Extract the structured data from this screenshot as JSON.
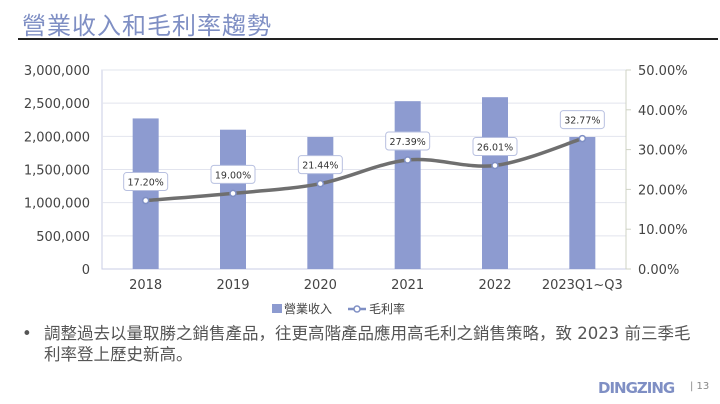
{
  "title": "營業收入和毛利率趨勢",
  "chart_data": {
    "type": "bar+line",
    "categories": [
      "2018",
      "2019",
      "2020",
      "2021",
      "2022",
      "2023Q1~Q3"
    ],
    "series": [
      {
        "name": "營業收入",
        "type": "bar",
        "axis": "left",
        "color": "#8d9bd0",
        "values": [
          2270000,
          2100000,
          1990000,
          2530000,
          2590000,
          1990000
        ]
      },
      {
        "name": "毛利率",
        "type": "line",
        "axis": "right",
        "color": "#6f6f6f",
        "values": [
          17.2,
          19.0,
          21.44,
          27.39,
          26.01,
          32.77
        ],
        "labels": [
          "17.20%",
          "19.00%",
          "21.44%",
          "27.39%",
          "26.01%",
          "32.77%"
        ]
      }
    ],
    "left_axis": {
      "min": 0,
      "max": 3000000,
      "ticks": [
        "0",
        "500,000",
        "1,000,000",
        "1,500,000",
        "2,000,000",
        "2,500,000",
        "3,000,000"
      ]
    },
    "right_axis": {
      "min": 0,
      "max": 50,
      "ticks": [
        "0.00%",
        "10.00%",
        "20.00%",
        "30.00%",
        "40.00%",
        "50.00%"
      ]
    },
    "grid": true,
    "legend": "bottom"
  },
  "bullet": {
    "mark": "•",
    "text": "調整過去以量取勝之銷售產品，往更高階產品應用高毛利之銷售策略，致 2023 前三季毛利率登上歷史新高。"
  },
  "footer": {
    "logo": "DINGZING",
    "page": "| 13"
  }
}
